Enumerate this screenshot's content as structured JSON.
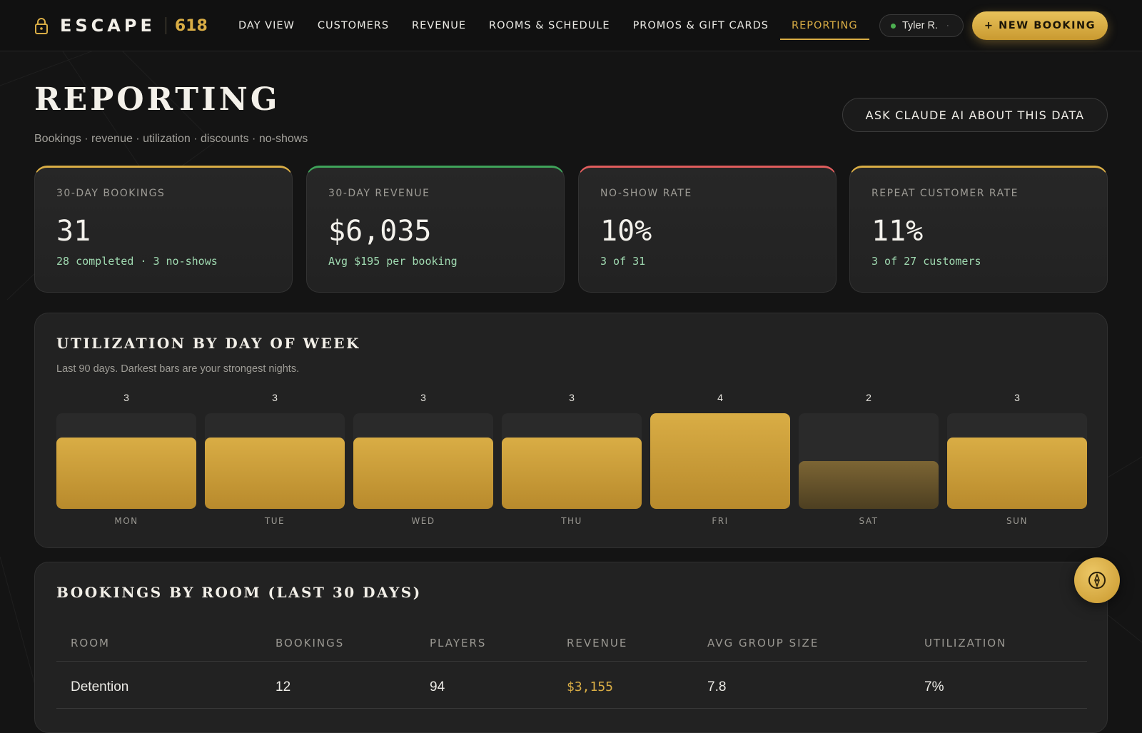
{
  "nav": {
    "brand_name": "ESCAPE",
    "brand_number": "618",
    "links": [
      "DAY VIEW",
      "CUSTOMERS",
      "REVENUE",
      "ROOMS & SCHEDULE",
      "PROMOS & GIFT CARDS",
      "REPORTING"
    ],
    "active_link": "REPORTING",
    "user_name": "Tyler R.",
    "user_caret": "·",
    "new_booking_label": "+ NEW BOOKING"
  },
  "header": {
    "title": "REPORTING",
    "subtitle": "Bookings · revenue · utilization · discounts · no-shows",
    "ask_ai_label": "ASK CLAUDE AI ABOUT THIS DATA"
  },
  "kpis": [
    {
      "label": "30-DAY BOOKINGS",
      "value": "31",
      "sub": "28 completed · 3 no-shows",
      "accent": "#d9ad45"
    },
    {
      "label": "30-DAY REVENUE",
      "value": "$6,035",
      "sub": "Avg $195 per booking",
      "accent": "#3fa35a"
    },
    {
      "label": "NO-SHOW RATE",
      "value": "10%",
      "sub": "3 of 31",
      "accent": "#e05d5d"
    },
    {
      "label": "REPEAT CUSTOMER RATE",
      "value": "11%",
      "sub": "3 of 27 customers",
      "accent": "#d9ad45"
    }
  ],
  "utilization": {
    "title": "UTILIZATION BY DAY OF WEEK",
    "subtitle": "Last 90 days. Darkest bars are your strongest nights."
  },
  "chart_data": {
    "type": "bar",
    "categories": [
      "MON",
      "TUE",
      "WED",
      "THU",
      "FRI",
      "SAT",
      "SUN"
    ],
    "values": [
      3,
      3,
      3,
      3,
      4,
      2,
      3
    ],
    "ylim": [
      0,
      4
    ],
    "title": "UTILIZATION BY DAY OF WEEK",
    "xlabel": "",
    "ylabel": "",
    "grid": false
  },
  "rooms_table": {
    "title": "BOOKINGS BY ROOM (LAST 30 DAYS)",
    "columns": [
      "ROOM",
      "BOOKINGS",
      "PLAYERS",
      "REVENUE",
      "AVG GROUP SIZE",
      "UTILIZATION"
    ],
    "rows": [
      [
        "Detention",
        "12",
        "94",
        "$3,155",
        "7.8",
        "7%"
      ]
    ]
  },
  "colors": {
    "accent_gold": "#d9ad45",
    "positive_green": "#9fd9b0",
    "status_green": "#4caf50"
  },
  "fab_icon": "compass-icon"
}
